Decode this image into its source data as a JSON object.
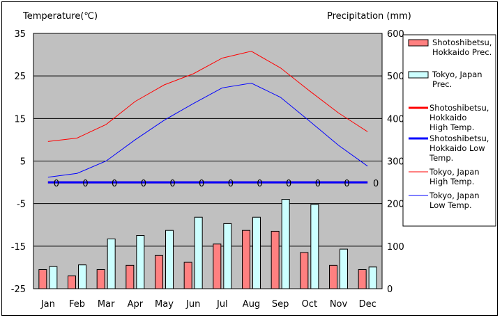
{
  "chart_data": {
    "type": "bar+line",
    "y_left_label": "Temperature(℃)",
    "y_right_label": "Precipitation (mm)",
    "y_left_range": [
      -25,
      35
    ],
    "y_left_ticks": [
      "35",
      "25",
      "15",
      "5",
      "-5",
      "-15",
      "-25"
    ],
    "y_right_range": [
      0,
      600
    ],
    "y_right_ticks": [
      "600",
      "500",
      "400",
      "300",
      "200",
      "100",
      "0"
    ],
    "categories": [
      "Jan",
      "Feb",
      "Mar",
      "Apr",
      "May",
      "Jun",
      "Jul",
      "Aug",
      "Sep",
      "Oct",
      "Nov",
      "Dec"
    ],
    "grid": true,
    "legend_position": "right",
    "bar_series": [
      {
        "legend": [
          "Shotoshibetsu,",
          "Hokkaido Prec."
        ],
        "color": "#ff8080",
        "values": [
          45,
          30,
          45,
          55,
          78,
          62,
          105,
          137,
          135,
          85,
          55,
          45
        ]
      },
      {
        "legend": [
          "Tokyo, Japan",
          "Prec."
        ],
        "color": "#ccffff",
        "values": [
          52,
          56,
          117,
          125,
          137,
          168,
          153,
          168,
          210,
          198,
          93,
          51
        ]
      }
    ],
    "line_series": [
      {
        "legend": [
          "Shotoshibetsu,",
          "Hokkaido",
          "High Temp."
        ],
        "color": "#ff0000",
        "width": 3,
        "values": [
          0,
          0,
          0,
          0,
          0,
          0,
          0,
          0,
          0,
          0,
          0,
          0
        ]
      },
      {
        "legend": [
          "Shotoshibetsu,",
          "Hokkaido Low",
          "Temp."
        ],
        "color": "#0000ff",
        "width": 3,
        "values": [
          0,
          0,
          0,
          0,
          0,
          0,
          0,
          0,
          0,
          0,
          0,
          0
        ]
      },
      {
        "legend": [
          "Tokyo, Japan",
          "High Temp."
        ],
        "color": "#ff0000",
        "width": 1,
        "values": [
          9.6,
          10.4,
          13.6,
          19.0,
          22.9,
          25.5,
          29.2,
          30.8,
          26.9,
          21.5,
          16.3,
          11.9
        ]
      },
      {
        "legend": [
          "Tokyo, Japan",
          "Low Temp."
        ],
        "color": "#0000ff",
        "width": 1,
        "values": [
          1.2,
          2.1,
          5.0,
          10.0,
          14.6,
          18.5,
          22.2,
          23.3,
          20.0,
          14.4,
          8.7,
          3.8
        ]
      }
    ],
    "data_labels": [
      "0",
      "0",
      "0",
      "0",
      "0",
      "0",
      "0",
      "0",
      "0",
      "0",
      "0",
      "0"
    ]
  }
}
